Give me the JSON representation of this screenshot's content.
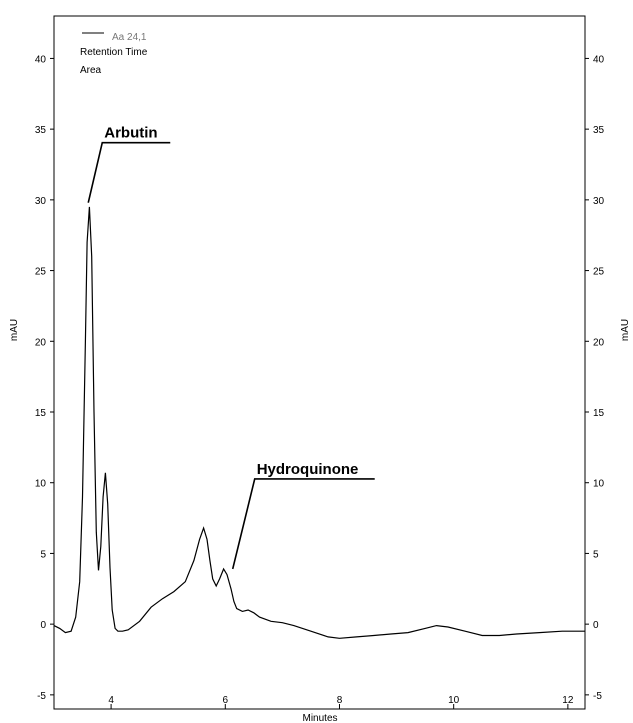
{
  "chart_data": {
    "type": "line",
    "xlabel": "Minutes",
    "ylabel_left": "mAU",
    "ylabel_right": "mAU",
    "xlim": [
      3.0,
      12.3
    ],
    "ylim": [
      -6,
      43
    ],
    "x_ticks": [
      4,
      6,
      8,
      10,
      12
    ],
    "y_ticks": [
      -5,
      0,
      5,
      10,
      15,
      20,
      25,
      30,
      35,
      40
    ],
    "grid": false,
    "legend": {
      "position": "top-left",
      "series_name": "Aa 24,1",
      "lines": [
        "Retention Time",
        "Area"
      ]
    },
    "series": [
      {
        "name": "Aa 24,1",
        "color": "#000000",
        "x": [
          3.0,
          3.1,
          3.2,
          3.3,
          3.38,
          3.45,
          3.5,
          3.55,
          3.58,
          3.62,
          3.66,
          3.7,
          3.74,
          3.78,
          3.82,
          3.86,
          3.9,
          3.94,
          3.98,
          4.02,
          4.07,
          4.12,
          4.2,
          4.3,
          4.5,
          4.7,
          4.9,
          5.1,
          5.3,
          5.45,
          5.55,
          5.62,
          5.68,
          5.73,
          5.78,
          5.84,
          5.9,
          5.97,
          6.03,
          6.1,
          6.15,
          6.2,
          6.3,
          6.4,
          6.5,
          6.6,
          6.8,
          7.0,
          7.2,
          7.5,
          7.8,
          8.0,
          8.3,
          8.6,
          8.9,
          9.2,
          9.5,
          9.7,
          9.9,
          10.2,
          10.5,
          10.8,
          11.1,
          11.5,
          11.9,
          12.3
        ],
        "y": [
          -0.1,
          -0.3,
          -0.6,
          -0.5,
          0.5,
          3.0,
          9.0,
          20.0,
          27.0,
          29.5,
          26.0,
          15.0,
          6.5,
          3.8,
          5.5,
          9.0,
          10.7,
          8.5,
          4.0,
          1.0,
          -0.3,
          -0.5,
          -0.5,
          -0.4,
          0.2,
          1.2,
          1.8,
          2.3,
          3.0,
          4.5,
          6.0,
          6.8,
          6.0,
          4.5,
          3.2,
          2.7,
          3.2,
          3.9,
          3.5,
          2.5,
          1.6,
          1.1,
          0.9,
          1.0,
          0.8,
          0.5,
          0.2,
          0.1,
          -0.1,
          -0.5,
          -0.9,
          -1.0,
          -0.9,
          -0.8,
          -0.7,
          -0.6,
          -0.3,
          -0.1,
          -0.2,
          -0.5,
          -0.8,
          -0.8,
          -0.7,
          -0.6,
          -0.5,
          -0.5
        ]
      }
    ],
    "annotations": [
      {
        "label": "Arbutin",
        "x": 3.6,
        "y": 29.8
      },
      {
        "label": "Hydroquinone",
        "x": 6.13,
        "y": 3.9
      }
    ]
  }
}
